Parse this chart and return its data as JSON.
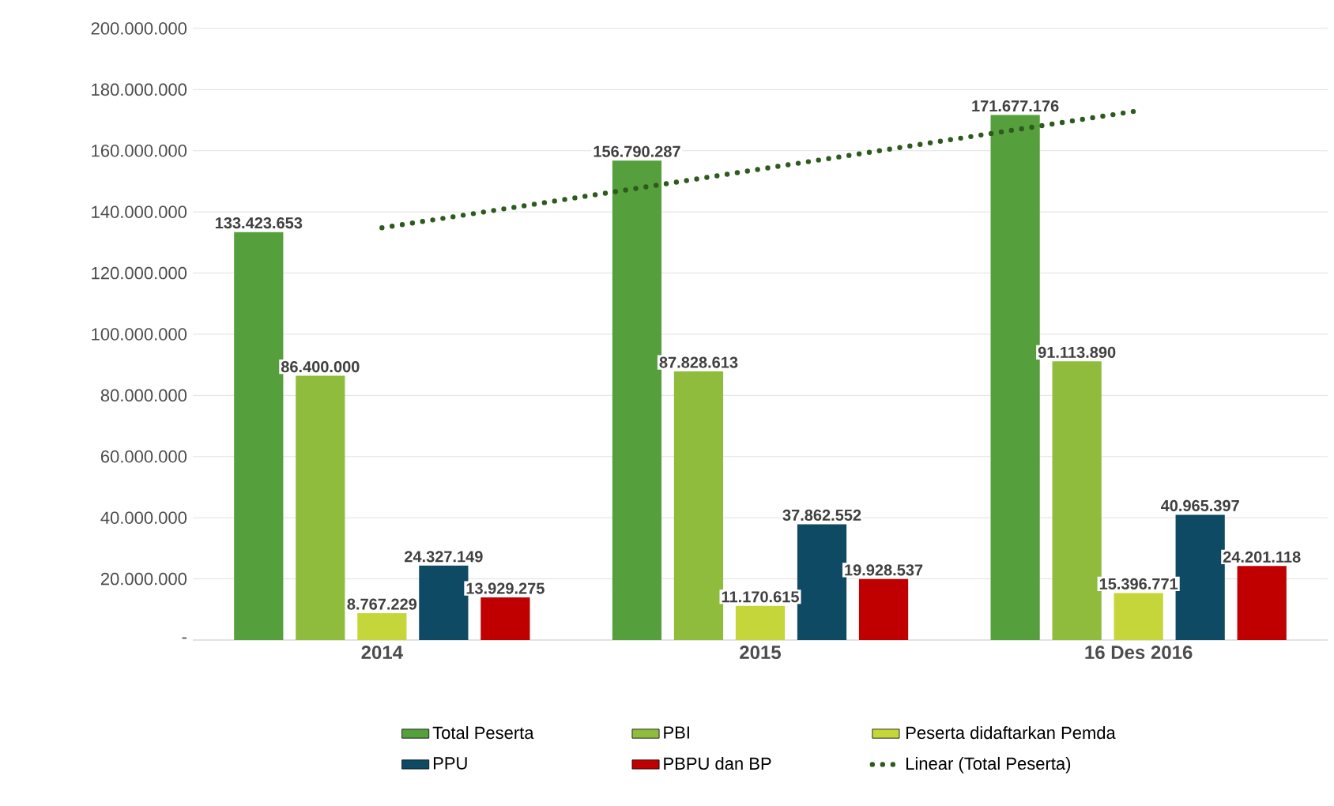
{
  "chart_data": {
    "type": "bar",
    "categories": [
      "2014",
      "2015",
      "16 Des 2016"
    ],
    "series": [
      {
        "name": "Total Peserta",
        "color": "#55a03c",
        "values": [
          133423653,
          156790287,
          171677176
        ],
        "value_labels": [
          "133.423.653",
          "156.790.287",
          "171.677.176"
        ]
      },
      {
        "name": "PBI",
        "color": "#8fbc3c",
        "values": [
          86400000,
          87828613,
          91113890
        ],
        "value_labels": [
          "86.400.000",
          "87.828.613",
          "91.113.890"
        ]
      },
      {
        "name": "Peserta didaftarkan Pemda",
        "color": "#c5d63a",
        "values": [
          8767229,
          11170615,
          15396771
        ],
        "value_labels": [
          "8.767.229",
          "11.170.615",
          "15.396.771"
        ]
      },
      {
        "name": "PPU",
        "color": "#0e4a63",
        "values": [
          24327149,
          37862552,
          40965397
        ],
        "value_labels": [
          "24.327.149",
          "37.862.552",
          "40.965.397"
        ]
      },
      {
        "name": "PBPU dan BP",
        "color": "#c00000",
        "values": [
          13929275,
          19928537,
          24201118
        ],
        "value_labels": [
          "13.929.275",
          "19.928.537",
          "24.201.118"
        ]
      },
      {
        "name": "Linear (Total Peserta)",
        "type": "line",
        "color": "#2e5a1e",
        "line_style": "dotted",
        "values": [
          134800000,
          154000000,
          173100000
        ]
      }
    ],
    "ylim": [
      0,
      200000000
    ],
    "yticks": [
      {
        "value": 0,
        "label": "-"
      },
      {
        "value": 20000000,
        "label": "20.000.000"
      },
      {
        "value": 40000000,
        "label": "40.000.000"
      },
      {
        "value": 60000000,
        "label": "60.000.000"
      },
      {
        "value": 80000000,
        "label": "80.000.000"
      },
      {
        "value": 100000000,
        "label": "100.000.000"
      },
      {
        "value": 120000000,
        "label": "120.000.000"
      },
      {
        "value": 140000000,
        "label": "140.000.000"
      },
      {
        "value": 160000000,
        "label": "160.000.000"
      },
      {
        "value": 180000000,
        "label": "180.000.000"
      },
      {
        "value": 200000000,
        "label": "200.000.000"
      }
    ],
    "grid": "y",
    "legend": "bottom"
  }
}
